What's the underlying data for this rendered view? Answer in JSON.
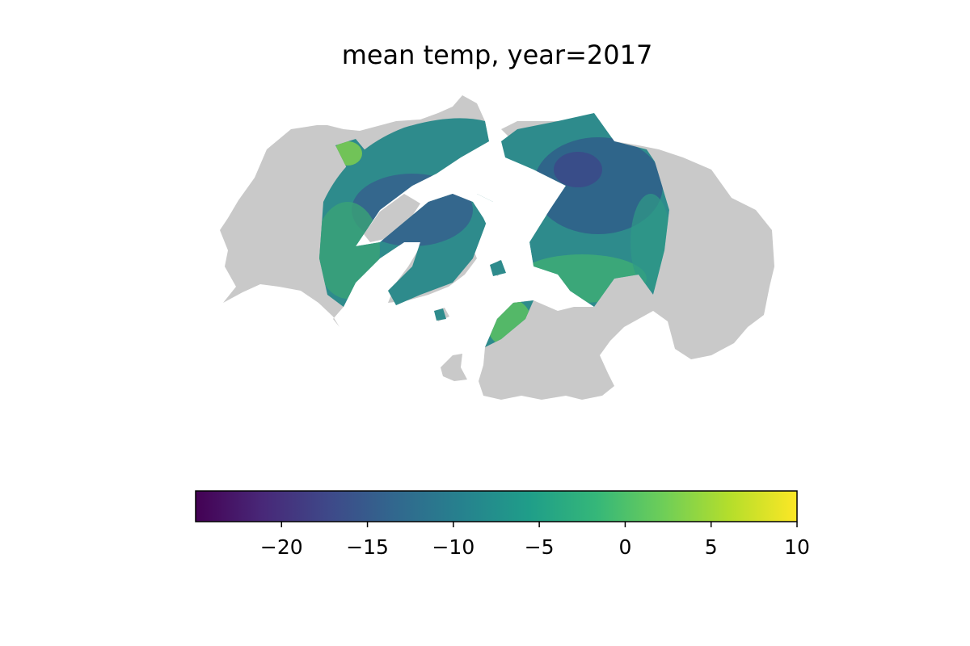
{
  "title": "mean temp, year=2017",
  "colors": {
    "land": "#c9c9c9",
    "ocean": "#ffffff",
    "colormap": "viridis",
    "colormap_stops": [
      "#440154",
      "#482878",
      "#3e4989",
      "#31688e",
      "#26828e",
      "#1f9e89",
      "#35b779",
      "#6ece58",
      "#b5de2b",
      "#fde725"
    ]
  },
  "map": {
    "projection": "north polar azimuthal",
    "base_layer": "land (gray)",
    "data_layer": "mean temperature raster"
  },
  "colorbar": {
    "min": -25,
    "max": 10,
    "ticks": [
      -20,
      -15,
      -10,
      -5,
      0,
      5,
      10
    ],
    "tick_labels": [
      "−20",
      "−15",
      "−10",
      "−5",
      "0",
      "5",
      "10"
    ],
    "orientation": "horizontal",
    "location": "bottom"
  }
}
